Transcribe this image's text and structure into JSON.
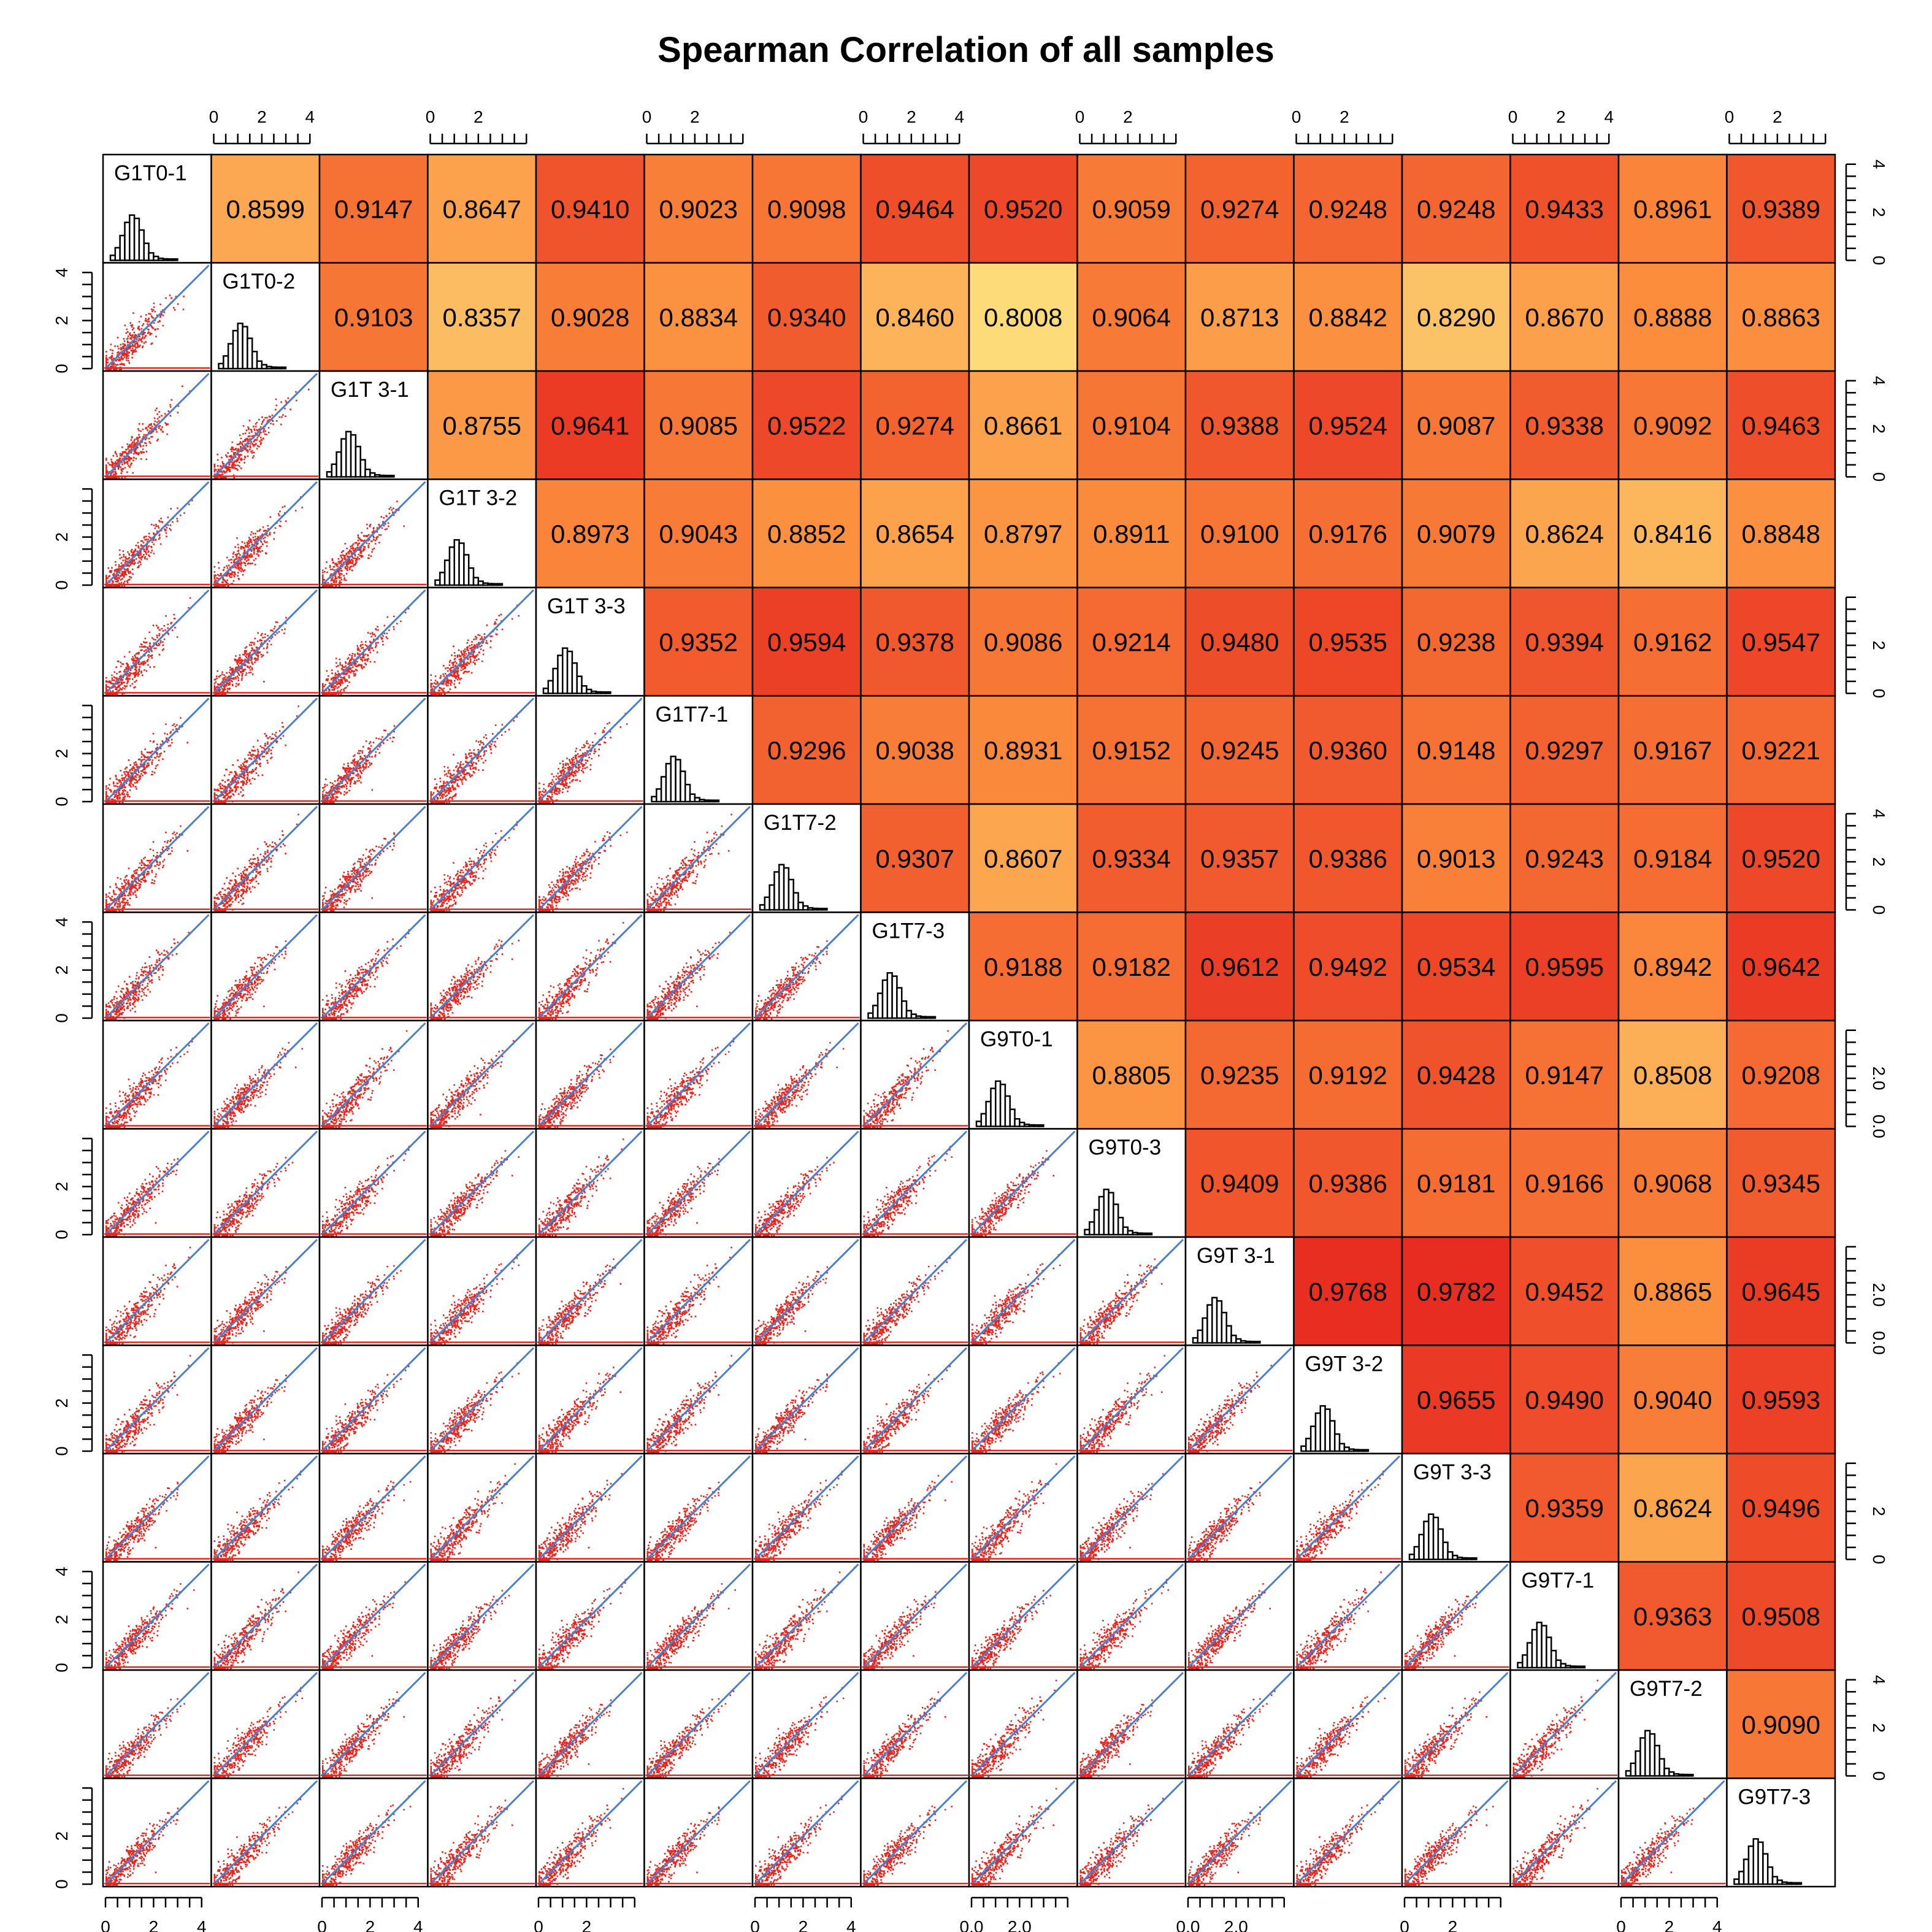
{
  "chart_data": {
    "type": "table",
    "title": "Spearman Correlation of all samples",
    "samples": [
      "G1T0-1",
      "G1T0-2",
      "G1T 3-1",
      "G1T 3-2",
      "G1T 3-3",
      "G1T7-1",
      "G1T7-2",
      "G1T7-3",
      "G9T0-1",
      "G9T0-3",
      "G9T 3-1",
      "G9T 3-2",
      "G9T 3-3",
      "G9T7-1",
      "G9T7-2",
      "G9T7-3"
    ],
    "correlations": [
      [
        "0.8599",
        "0.9147",
        "0.8647",
        "0.9410",
        "0.9023",
        "0.9098",
        "0.9464",
        "0.9520",
        "0.9059",
        "0.9274",
        "0.9248",
        "0.9248",
        "0.9433",
        "0.8961",
        "0.9389"
      ],
      [
        "0.9103",
        "0.8357",
        "0.9028",
        "0.8834",
        "0.9340",
        "0.8460",
        "0.8008",
        "0.9064",
        "0.8713",
        "0.8842",
        "0.8290",
        "0.8670",
        "0.8888",
        "0.8863"
      ],
      [
        "0.8755",
        "0.9641",
        "0.9085",
        "0.9522",
        "0.9274",
        "0.8661",
        "0.9104",
        "0.9388",
        "0.9524",
        "0.9087",
        "0.9338",
        "0.9092",
        "0.9463"
      ],
      [
        "0.8973",
        "0.9043",
        "0.8852",
        "0.8654",
        "0.8797",
        "0.8911",
        "0.9100",
        "0.9176",
        "0.9079",
        "0.8624",
        "0.8416",
        "0.8848"
      ],
      [
        "0.9352",
        "0.9594",
        "0.9378",
        "0.9086",
        "0.9214",
        "0.9480",
        "0.9535",
        "0.9238",
        "0.9394",
        "0.9162",
        "0.9547"
      ],
      [
        "0.9296",
        "0.9038",
        "0.8931",
        "0.9152",
        "0.9245",
        "0.9360",
        "0.9148",
        "0.9297",
        "0.9167",
        "0.9221"
      ],
      [
        "0.9307",
        "0.8607",
        "0.9334",
        "0.9357",
        "0.9386",
        "0.9013",
        "0.9243",
        "0.9184",
        "0.9520"
      ],
      [
        "0.9188",
        "0.9182",
        "0.9612",
        "0.9492",
        "0.9534",
        "0.9595",
        "0.8942",
        "0.9642"
      ],
      [
        "0.8805",
        "0.9235",
        "0.9192",
        "0.9428",
        "0.9147",
        "0.8508",
        "0.9208"
      ],
      [
        "0.9409",
        "0.9386",
        "0.9181",
        "0.9166",
        "0.9068",
        "0.9345"
      ],
      [
        "0.9768",
        "0.9782",
        "0.9452",
        "0.8865",
        "0.9645"
      ],
      [
        "0.9655",
        "0.9490",
        "0.9040",
        "0.9593"
      ],
      [
        "0.9359",
        "0.8624",
        "0.9496"
      ],
      [
        "0.9363",
        "0.9508"
      ],
      [
        "0.9090"
      ]
    ],
    "axis_ticks": {
      "0": [
        "0",
        "2",
        "4"
      ],
      "1": [
        "0",
        "2",
        "4"
      ],
      "2": [
        "0",
        "2",
        "4"
      ],
      "3": [
        "0",
        "2"
      ],
      "4": [
        "0",
        "2"
      ],
      "5": [
        "0",
        "2"
      ],
      "6": [
        "0",
        "2",
        "4"
      ],
      "7": [
        "0",
        "2",
        "4"
      ],
      "8": [
        "0.0",
        "2.0"
      ],
      "9": [
        "0",
        "2"
      ],
      "10": [
        "0.0",
        "2.0"
      ],
      "11": [
        "0",
        "2"
      ],
      "12": [
        "0",
        "2"
      ],
      "13": [
        "0",
        "2",
        "4"
      ],
      "14": [
        "0",
        "2",
        "4"
      ],
      "15": [
        "0",
        "2"
      ]
    },
    "axis_range": [
      0,
      4.3
    ],
    "upper_panel": "correlation coefficient, fill color scale light yellow (0.80) to red (0.98)",
    "diagonal_panel": "histogram",
    "lower_panel": "scatter",
    "colors": {
      "low": "#fddc7a",
      "mid": "#fb8c3c",
      "high": "#e72a20",
      "scatter_points": "#e8241c",
      "fit_line": "#4a7fd0",
      "histogram_fill": "#ffffff",
      "frame": "#000000"
    }
  }
}
